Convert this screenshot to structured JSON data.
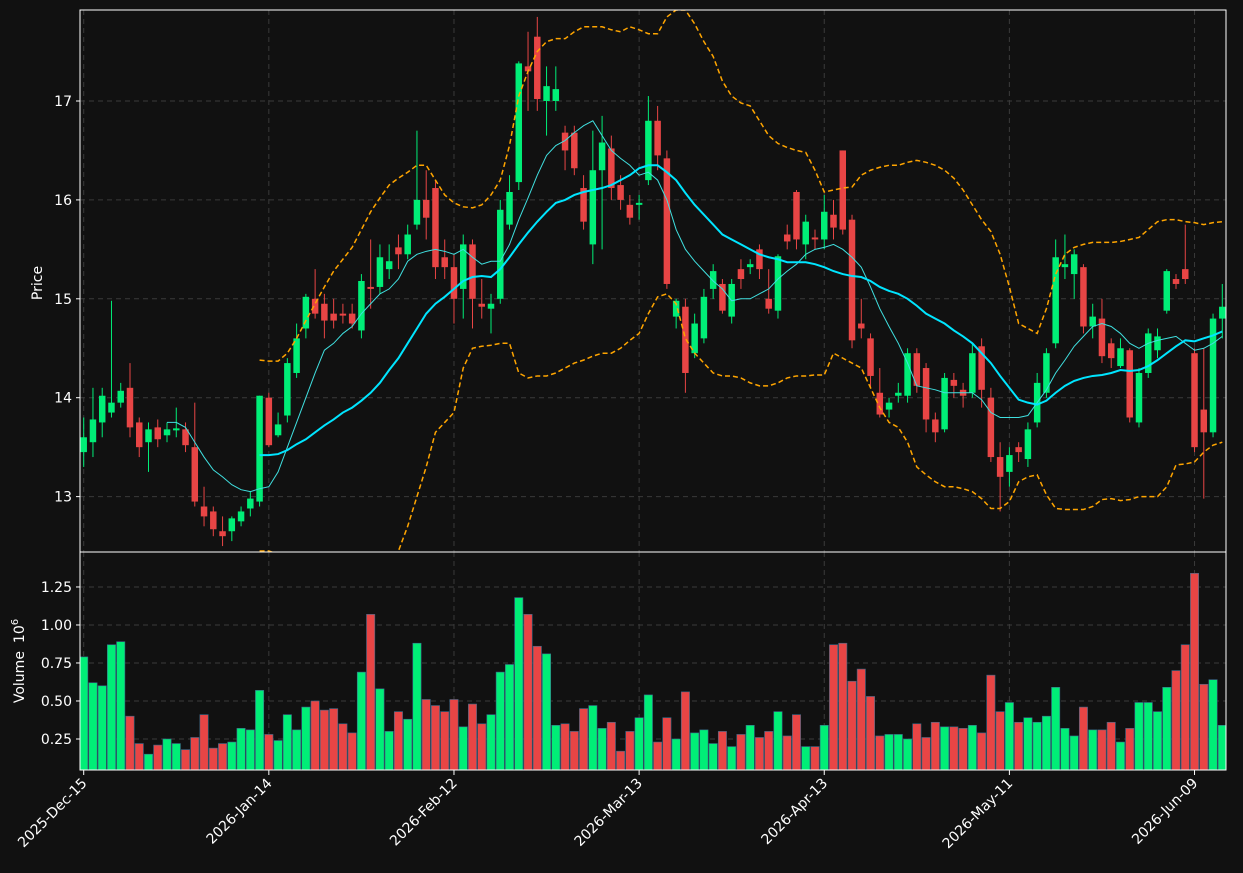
{
  "chart_data": {
    "type": "candlestick",
    "y_label": "Price",
    "xlim": [
      -0.4,
      123.4
    ],
    "xticks": [
      {
        "value": 0,
        "label": "2025-Dec-15"
      },
      {
        "value": 20,
        "label": "2026-Jan-14"
      },
      {
        "value": 40,
        "label": "2026-Feb-12"
      },
      {
        "value": 60,
        "label": "2026-Mar-13"
      },
      {
        "value": 80,
        "label": "2026-Apr-13"
      },
      {
        "value": 100,
        "label": "2026-May-11"
      },
      {
        "value": 120,
        "label": "2026-Jun-09"
      }
    ],
    "ylim": [
      12.44,
      17.92
    ],
    "yticks": [
      13,
      14,
      15,
      16,
      17
    ],
    "grid": true,
    "up_color": "#00ee77",
    "down_color": "#e84545",
    "open": [
      13.45,
      13.55,
      13.75,
      13.85,
      13.95,
      14.1,
      13.75,
      13.55,
      13.7,
      13.62,
      13.67,
      13.68,
      13.5,
      12.9,
      12.85,
      12.65,
      12.65,
      12.75,
      12.88,
      12.95,
      14.0,
      13.62,
      13.82,
      14.25,
      14.7,
      15.0,
      14.95,
      14.85,
      14.85,
      14.85,
      14.68,
      15.12,
      15.12,
      15.3,
      15.52,
      15.45,
      15.75,
      16.0,
      16.12,
      15.42,
      15.32,
      15.1,
      15.55,
      14.95,
      14.9,
      15.0,
      15.75,
      16.18,
      17.35,
      17.65,
      17.0,
      17.0,
      16.68,
      16.68,
      16.12,
      15.55,
      16.3,
      16.52,
      16.15,
      15.95,
      15.95,
      16.2,
      16.8,
      16.42,
      14.82,
      14.92,
      14.45,
      14.6,
      15.1,
      15.15,
      14.82,
      15.3,
      15.32,
      15.5,
      15.0,
      14.88,
      15.65,
      16.08,
      15.55,
      15.62,
      15.6,
      15.85,
      16.5,
      15.8,
      14.75,
      14.6,
      14.05,
      13.88,
      14.02,
      14.02,
      14.45,
      14.3,
      13.78,
      13.68,
      14.18,
      14.08,
      14.05,
      14.52,
      14.0,
      13.4,
      13.25,
      13.5,
      13.38,
      13.75,
      14.05,
      14.55,
      15.32,
      15.25,
      15.32,
      14.72,
      14.8,
      14.55,
      14.32,
      14.48,
      13.75,
      14.25,
      14.48,
      14.88,
      15.2,
      15.3,
      14.45,
      13.88,
      13.65,
      14.8
    ],
    "high": [
      13.8,
      14.1,
      14.1,
      14.98,
      14.15,
      14.35,
      13.8,
      13.75,
      13.78,
      13.75,
      13.9,
      13.75,
      13.95,
      13.1,
      12.9,
      12.8,
      12.8,
      12.9,
      13.05,
      14.02,
      14.05,
      13.85,
      14.4,
      14.75,
      15.05,
      15.3,
      15.05,
      15.0,
      14.95,
      14.95,
      15.25,
      15.6,
      15.55,
      15.55,
      15.65,
      15.75,
      16.7,
      16.3,
      16.2,
      15.6,
      15.45,
      15.65,
      15.6,
      15.2,
      15.05,
      16.0,
      16.25,
      17.4,
      17.7,
      17.85,
      17.35,
      17.35,
      16.75,
      16.75,
      16.25,
      16.7,
      16.85,
      16.65,
      16.25,
      16.05,
      16.05,
      17.05,
      16.95,
      16.5,
      15.0,
      15.0,
      14.85,
      15.1,
      15.35,
      15.2,
      15.2,
      15.4,
      15.4,
      15.55,
      15.3,
      15.45,
      15.75,
      16.1,
      15.85,
      15.7,
      16.05,
      16.0,
      16.5,
      15.85,
      15.0,
      14.65,
      14.3,
      14.0,
      14.15,
      14.5,
      14.5,
      14.35,
      13.85,
      14.25,
      14.25,
      14.15,
      14.55,
      14.6,
      14.1,
      13.55,
      13.5,
      13.55,
      13.75,
      14.25,
      14.5,
      15.6,
      15.65,
      15.5,
      15.35,
      14.95,
      15.0,
      14.6,
      14.6,
      14.5,
      14.3,
      14.7,
      14.7,
      15.3,
      15.25,
      15.75,
      14.5,
      14.5,
      14.85,
      15.15
    ],
    "low": [
      13.3,
      13.4,
      13.6,
      13.8,
      13.9,
      13.6,
      13.4,
      13.25,
      13.5,
      13.55,
      13.6,
      13.45,
      12.9,
      12.7,
      12.6,
      12.5,
      12.55,
      12.7,
      12.8,
      12.9,
      13.5,
      13.6,
      13.75,
      14.2,
      14.6,
      14.8,
      14.6,
      14.7,
      14.75,
      14.7,
      14.6,
      14.9,
      15.05,
      15.2,
      15.3,
      15.4,
      15.7,
      15.6,
      15.2,
      15.2,
      14.75,
      14.8,
      14.7,
      14.8,
      14.65,
      14.95,
      15.7,
      16.1,
      16.9,
      16.9,
      16.65,
      16.9,
      16.3,
      16.25,
      15.7,
      15.35,
      15.5,
      16.0,
      15.9,
      15.75,
      15.8,
      16.15,
      16.3,
      15.1,
      14.7,
      14.05,
      14.4,
      14.55,
      15.0,
      14.85,
      14.75,
      15.1,
      15.25,
      15.2,
      14.85,
      14.8,
      15.5,
      15.5,
      15.4,
      15.5,
      15.5,
      15.6,
      15.65,
      14.5,
      14.6,
      14.1,
      13.8,
      13.8,
      13.95,
      13.95,
      14.05,
      13.65,
      13.55,
      13.65,
      14.0,
      13.9,
      14.0,
      13.9,
      13.35,
      12.85,
      13.1,
      13.35,
      13.3,
      13.7,
      14.0,
      14.5,
      15.2,
      15.0,
      14.65,
      14.6,
      14.35,
      14.3,
      14.3,
      13.75,
      13.7,
      14.2,
      14.4,
      14.85,
      15.1,
      15.15,
      13.45,
      12.98,
      13.6,
      14.6
    ],
    "close": [
      13.6,
      13.78,
      14.02,
      13.95,
      14.07,
      13.7,
      13.5,
      13.68,
      13.58,
      13.68,
      13.69,
      13.52,
      12.95,
      12.8,
      12.67,
      12.6,
      12.78,
      12.85,
      12.98,
      14.02,
      13.52,
      13.73,
      14.35,
      14.6,
      15.02,
      14.85,
      14.78,
      14.78,
      14.83,
      14.75,
      15.18,
      15.1,
      15.42,
      15.38,
      15.45,
      15.65,
      16.0,
      15.82,
      15.32,
      15.32,
      15.0,
      15.55,
      15.0,
      14.92,
      14.95,
      15.9,
      16.08,
      17.38,
      17.3,
      17.02,
      17.15,
      17.12,
      16.5,
      16.32,
      15.78,
      16.3,
      16.58,
      16.12,
      16.0,
      15.82,
      15.97,
      16.8,
      16.45,
      15.15,
      14.98,
      14.25,
      14.75,
      15.02,
      15.28,
      14.88,
      15.15,
      15.2,
      15.35,
      15.3,
      14.9,
      15.43,
      15.58,
      15.6,
      15.78,
      15.6,
      15.88,
      15.72,
      15.7,
      14.58,
      14.7,
      14.22,
      13.83,
      13.95,
      14.05,
      14.45,
      14.12,
      13.78,
      13.65,
      14.2,
      14.12,
      14.02,
      14.45,
      14.08,
      13.4,
      13.2,
      13.42,
      13.45,
      13.68,
      14.15,
      14.45,
      15.42,
      15.35,
      15.45,
      14.72,
      14.82,
      14.42,
      14.4,
      14.5,
      13.8,
      14.25,
      14.65,
      14.62,
      15.28,
      15.15,
      15.2,
      13.5,
      13.65,
      14.8,
      14.92
    ],
    "moving_averages": [
      {
        "color": "#40e0e0",
        "width": 1,
        "values": [
          null,
          null,
          null,
          null,
          null,
          null,
          null,
          null,
          null,
          13.75,
          13.75,
          13.7,
          13.55,
          13.4,
          13.27,
          13.2,
          13.12,
          13.07,
          13.05,
          13.08,
          13.1,
          13.25,
          13.5,
          13.75,
          14.0,
          14.25,
          14.48,
          14.55,
          14.65,
          14.72,
          14.85,
          14.95,
          15.05,
          15.1,
          15.2,
          15.38,
          15.45,
          15.48,
          15.5,
          15.48,
          15.45,
          15.5,
          15.42,
          15.35,
          15.38,
          15.38,
          15.55,
          15.8,
          16.02,
          16.25,
          16.45,
          16.55,
          16.6,
          16.68,
          16.75,
          16.8,
          16.65,
          16.5,
          16.42,
          16.35,
          16.25,
          16.28,
          16.2,
          16.0,
          15.7,
          15.5,
          15.38,
          15.28,
          15.18,
          15.1,
          14.98,
          15.0,
          15.0,
          15.05,
          15.1,
          15.2,
          15.28,
          15.35,
          15.45,
          15.5,
          15.52,
          15.55,
          15.5,
          15.42,
          15.32,
          15.12,
          14.9,
          14.72,
          14.55,
          14.35,
          14.12,
          14.1,
          14.08,
          14.05,
          14.05,
          14.05,
          14.05,
          13.98,
          13.85,
          13.8,
          13.8,
          13.8,
          13.82,
          13.95,
          14.08,
          14.25,
          14.38,
          14.52,
          14.62,
          14.72,
          14.75,
          14.72,
          14.65,
          14.55,
          14.5,
          14.55,
          14.58,
          14.6,
          14.62,
          14.55,
          14.48,
          14.5,
          14.55,
          14.62
        ]
      },
      {
        "color": "#00e5ff",
        "width": 2,
        "values": [
          null,
          null,
          null,
          null,
          null,
          null,
          null,
          null,
          null,
          null,
          null,
          null,
          null,
          null,
          null,
          null,
          null,
          null,
          null,
          13.42,
          13.42,
          13.43,
          13.47,
          13.53,
          13.58,
          13.65,
          13.72,
          13.78,
          13.85,
          13.9,
          13.97,
          14.05,
          14.15,
          14.28,
          14.4,
          14.55,
          14.7,
          14.85,
          14.95,
          15.02,
          15.1,
          15.18,
          15.22,
          15.23,
          15.22,
          15.3,
          15.42,
          15.55,
          15.67,
          15.78,
          15.88,
          15.97,
          16.0,
          16.05,
          16.08,
          16.1,
          16.12,
          16.15,
          16.2,
          16.25,
          16.32,
          16.35,
          16.35,
          16.28,
          16.2,
          16.07,
          15.95,
          15.85,
          15.75,
          15.65,
          15.6,
          15.55,
          15.5,
          15.45,
          15.42,
          15.4,
          15.37,
          15.37,
          15.37,
          15.35,
          15.32,
          15.28,
          15.25,
          15.23,
          15.22,
          15.18,
          15.12,
          15.08,
          15.05,
          15.0,
          14.93,
          14.85,
          14.8,
          14.75,
          14.68,
          14.62,
          14.55,
          14.45,
          14.35,
          14.22,
          14.1,
          13.98,
          13.95,
          13.93,
          13.97,
          14.05,
          14.12,
          14.17,
          14.2,
          14.22,
          14.23,
          14.25,
          14.28,
          14.27,
          14.28,
          14.32,
          14.38,
          14.45,
          14.52,
          14.58,
          14.57,
          14.6,
          14.63,
          14.67
        ]
      }
    ],
    "bands": {
      "color": "#ffa500",
      "upper": [
        null,
        null,
        null,
        null,
        null,
        null,
        null,
        null,
        null,
        null,
        null,
        null,
        null,
        null,
        null,
        null,
        null,
        null,
        null,
        14.38,
        14.37,
        14.37,
        14.45,
        14.6,
        14.78,
        14.95,
        15.12,
        15.28,
        15.4,
        15.52,
        15.7,
        15.88,
        16.02,
        16.15,
        16.22,
        16.28,
        16.35,
        16.35,
        16.2,
        16.05,
        15.97,
        15.93,
        15.92,
        15.95,
        16.05,
        16.2,
        16.55,
        17.05,
        17.3,
        17.5,
        17.6,
        17.63,
        17.63,
        17.7,
        17.75,
        17.75,
        17.75,
        17.72,
        17.7,
        17.75,
        17.72,
        17.68,
        17.68,
        17.85,
        17.92,
        17.92,
        17.78,
        17.6,
        17.45,
        17.2,
        17.05,
        16.98,
        16.95,
        16.8,
        16.65,
        16.57,
        16.53,
        16.5,
        16.48,
        16.3,
        16.08,
        16.1,
        16.12,
        16.13,
        16.25,
        16.3,
        16.33,
        16.35,
        16.35,
        16.38,
        16.4,
        16.38,
        16.35,
        16.3,
        16.22,
        16.1,
        15.95,
        15.8,
        15.68,
        15.45,
        15.12,
        14.75,
        14.7,
        14.65,
        14.9,
        15.25,
        15.45,
        15.52,
        15.55,
        15.57,
        15.57,
        15.57,
        15.58,
        15.6,
        15.62,
        15.7,
        15.78,
        15.8,
        15.8,
        15.78,
        15.77,
        15.75,
        15.77,
        15.78
      ],
      "lower": [
        null,
        null,
        null,
        null,
        null,
        null,
        null,
        null,
        null,
        null,
        null,
        null,
        null,
        null,
        null,
        null,
        null,
        null,
        null,
        12.45,
        12.45,
        12.42,
        12.35,
        12.25,
        12.15,
        12.05,
        11.95,
        11.9,
        11.9,
        11.95,
        12.05,
        12.15,
        12.25,
        12.35,
        12.45,
        12.7,
        13.0,
        13.3,
        13.65,
        13.75,
        13.85,
        14.3,
        14.5,
        14.52,
        14.53,
        14.55,
        14.55,
        14.25,
        14.2,
        14.22,
        14.22,
        14.25,
        14.3,
        14.35,
        14.38,
        14.42,
        14.45,
        14.45,
        14.5,
        14.58,
        14.65,
        14.85,
        15.02,
        15.05,
        14.95,
        14.6,
        14.45,
        14.35,
        14.25,
        14.22,
        14.22,
        14.2,
        14.15,
        14.12,
        14.12,
        14.15,
        14.2,
        14.22,
        14.22,
        14.23,
        14.23,
        14.45,
        14.4,
        14.35,
        14.3,
        14.1,
        13.9,
        13.75,
        13.7,
        13.55,
        13.3,
        13.22,
        13.15,
        13.1,
        13.1,
        13.08,
        13.05,
        12.98,
        12.88,
        12.88,
        12.95,
        13.15,
        13.2,
        13.22,
        13.02,
        12.88,
        12.87,
        12.87,
        12.87,
        12.9,
        12.97,
        12.98,
        12.96,
        12.97,
        13.0,
        13.0,
        13.0,
        13.1,
        13.32,
        13.33,
        13.35,
        13.45,
        13.52,
        13.55
      ]
    },
    "volume": {
      "y_label": "Volume",
      "offset": {
        "base": "10",
        "exponent": "6"
      },
      "ylim": [
        0.046,
        1.48
      ],
      "yticks": [
        0.25,
        {
          "value": 0.5,
          "label": "0.50"
        },
        0.75,
        {
          "value": 1.0,
          "label": "1.00"
        },
        1.25
      ],
      "values": [
        0.79,
        0.62,
        0.6,
        0.87,
        0.89,
        0.4,
        0.22,
        0.15,
        0.21,
        0.25,
        0.22,
        0.18,
        0.26,
        0.41,
        0.19,
        0.22,
        0.23,
        0.32,
        0.31,
        0.57,
        0.28,
        0.24,
        0.41,
        0.31,
        0.46,
        0.5,
        0.44,
        0.45,
        0.35,
        0.29,
        0.69,
        1.07,
        0.58,
        0.3,
        0.43,
        0.38,
        0.88,
        0.51,
        0.47,
        0.43,
        0.51,
        0.33,
        0.48,
        0.35,
        0.41,
        0.69,
        0.74,
        1.18,
        1.07,
        0.86,
        0.81,
        0.34,
        0.35,
        0.3,
        0.45,
        0.47,
        0.32,
        0.36,
        0.17,
        0.3,
        0.39,
        0.54,
        0.23,
        0.39,
        0.25,
        0.56,
        0.29,
        0.31,
        0.22,
        0.3,
        0.2,
        0.28,
        0.34,
        0.26,
        0.3,
        0.43,
        0.27,
        0.41,
        0.2,
        0.2,
        0.34,
        0.87,
        0.88,
        0.63,
        0.71,
        0.53,
        0.27,
        0.28,
        0.28,
        0.25,
        0.35,
        0.26,
        0.36,
        0.33,
        0.33,
        0.32,
        0.34,
        0.29,
        0.67,
        0.43,
        0.49,
        0.36,
        0.39,
        0.36,
        0.4,
        0.59,
        0.32,
        0.27,
        0.46,
        0.31,
        0.31,
        0.36,
        0.23,
        0.32,
        0.49,
        0.49,
        0.43,
        0.59,
        0.7,
        0.87,
        1.34,
        0.61,
        0.64,
        0.34
      ]
    }
  }
}
